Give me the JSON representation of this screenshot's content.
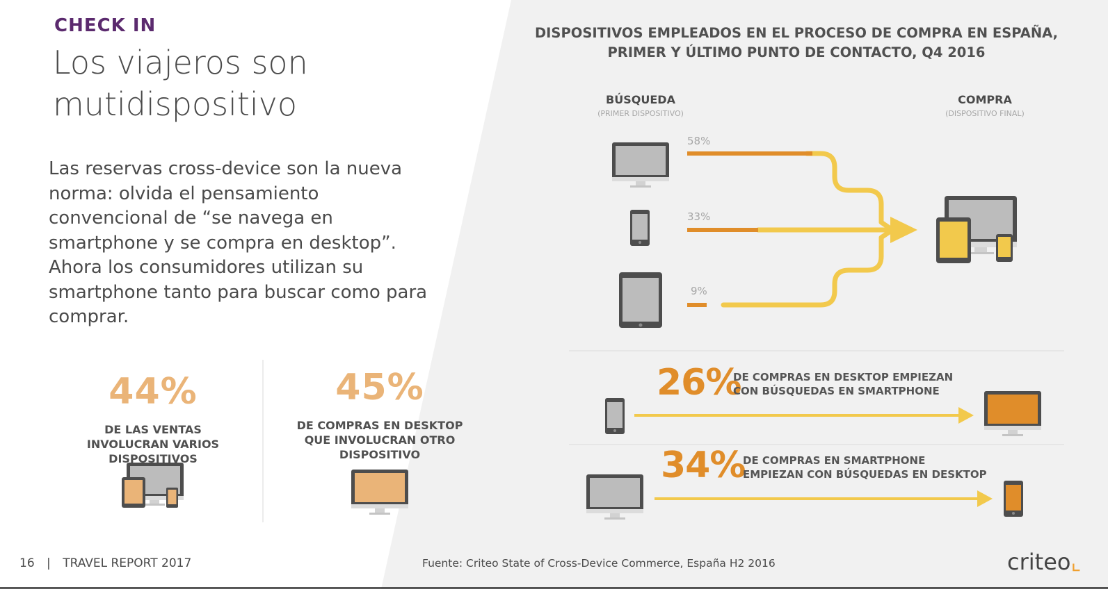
{
  "colors": {
    "purple": "#5b2a6e",
    "orange": "#e08d2a",
    "light_orange": "#eab478",
    "yellow": "#f2c94c",
    "grey_bg": "#f1f1f1"
  },
  "header": {
    "section": "CHECK IN",
    "title": "Los viajeros son mutidispositivo"
  },
  "intro": "Las reservas cross-device son la nueva norma: olvida el pensamiento convencional de “se navega en smartphone y se compra en desktop”. Ahora los consumidores utilizan su smartphone tanto para buscar como para comprar.",
  "stats": [
    {
      "value": "44%",
      "label": "DE LAS VENTAS INVOLUCRAN VARIOS DISPOSITIVOS",
      "icon": "multi-device-icon"
    },
    {
      "value": "45%",
      "label": "DE COMPRAS EN DESKTOP QUE INVOLUCRAN OTRO DISPOSITIVO",
      "icon": "desktop-icon"
    }
  ],
  "right": {
    "title_line1": "DISPOSITIVOS EMPLEADOS EN EL PROCESO DE COMPRA EN ESPAÑA,",
    "title_line2": "PRIMER Y ÚLTIMO PUNTO DE CONTACTO, Q4 2016",
    "search_head": "BÚSQUEDA",
    "search_sub": "(PRIMER DISPOSITIVO)",
    "buy_head": "COMPRA",
    "buy_sub": "(DISPOSITIVO FINAL)",
    "flows": [
      {
        "device": "desktop-icon",
        "label": "58%",
        "value": 58
      },
      {
        "device": "smartphone-icon",
        "label": "33%",
        "value": 33
      },
      {
        "device": "tablet-icon",
        "label": "9%",
        "value": 9
      }
    ],
    "highlights": [
      {
        "value": "26%",
        "line1": "DE COMPRAS EN DESKTOP EMPIEZAN",
        "line2": "CON BÚSQUEDAS EN SMARTPHONE",
        "from": "smartphone-icon",
        "to": "desktop-icon"
      },
      {
        "value": "34%",
        "line1": "DE COMPRAS EN SMARTPHONE",
        "line2": "EMPIEZAN CON BÚSQUEDAS EN DESKTOP",
        "from": "desktop-icon",
        "to": "smartphone-icon"
      }
    ]
  },
  "footer": {
    "page": "16",
    "separator": "|",
    "report": "TRAVEL REPORT 2017",
    "source": "Fuente: Criteo State of Cross-Device Commerce, España H2 2016",
    "logo": "criteo"
  }
}
